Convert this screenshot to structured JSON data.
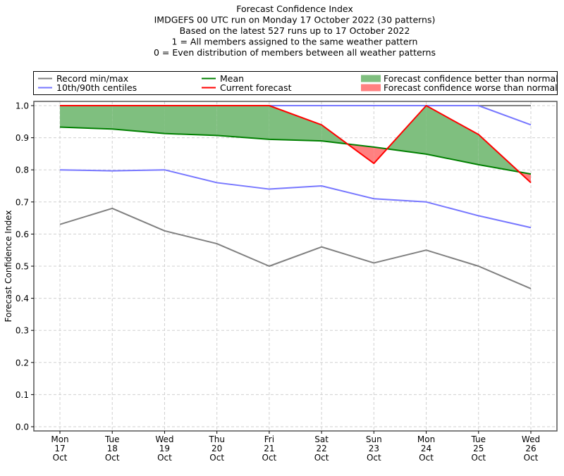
{
  "chart_data": {
    "type": "line",
    "title_lines": [
      "Forecast Confidence Index",
      "IMDGEFS 00 UTC run on Monday 17 October 2022 (30 patterns)",
      "Based on the latest 527 runs up to 17 October 2022",
      "1 = All members assigned to the same weather pattern",
      "0 = Even distribution of members between all weather patterns"
    ],
    "xlabel": "",
    "ylabel": "Forecast Confidence Index",
    "ylim": [
      0.0,
      1.0
    ],
    "yticks": [
      "0.0",
      "0.1",
      "0.2",
      "0.3",
      "0.4",
      "0.5",
      "0.6",
      "0.7",
      "0.8",
      "0.9",
      "1.0"
    ],
    "grid": true,
    "categories": [
      {
        "day": "Mon",
        "date": "17",
        "month": "Oct"
      },
      {
        "day": "Tue",
        "date": "18",
        "month": "Oct"
      },
      {
        "day": "Wed",
        "date": "19",
        "month": "Oct"
      },
      {
        "day": "Thu",
        "date": "20",
        "month": "Oct"
      },
      {
        "day": "Fri",
        "date": "21",
        "month": "Oct"
      },
      {
        "day": "Sat",
        "date": "22",
        "month": "Oct"
      },
      {
        "day": "Sun",
        "date": "23",
        "month": "Oct"
      },
      {
        "day": "Mon",
        "date": "24",
        "month": "Oct"
      },
      {
        "day": "Tue",
        "date": "25",
        "month": "Oct"
      },
      {
        "day": "Wed",
        "date": "26",
        "month": "Oct"
      }
    ],
    "series": [
      {
        "name": "Record min",
        "color": "#808080",
        "values": [
          0.63,
          0.68,
          0.61,
          0.57,
          0.5,
          0.56,
          0.51,
          0.55,
          0.5,
          0.43
        ]
      },
      {
        "name": "Record max",
        "color": "#808080",
        "values": [
          1.0,
          1.0,
          1.0,
          1.0,
          1.0,
          1.0,
          1.0,
          1.0,
          1.0,
          1.0
        ]
      },
      {
        "name": "10th centile",
        "color": "#7777ff",
        "values": [
          0.8,
          0.797,
          0.8,
          0.76,
          0.74,
          0.75,
          0.71,
          0.7,
          0.657,
          0.62
        ]
      },
      {
        "name": "90th centile",
        "color": "#7777ff",
        "values": [
          1.0,
          1.0,
          1.0,
          1.0,
          1.0,
          1.0,
          1.0,
          1.0,
          1.0,
          0.94
        ]
      },
      {
        "name": "Mean",
        "color": "#008000",
        "values": [
          0.933,
          0.927,
          0.913,
          0.907,
          0.895,
          0.89,
          0.871,
          0.849,
          0.816,
          0.787
        ]
      },
      {
        "name": "Current forecast",
        "color": "#ff0000",
        "values": [
          1.0,
          1.0,
          1.0,
          1.0,
          1.0,
          0.94,
          0.82,
          1.0,
          0.91,
          0.76
        ]
      }
    ],
    "fills": {
      "better": {
        "color": "#7fbf7f",
        "label": "Forecast confidence better than normal"
      },
      "worse": {
        "color": "#ff8080",
        "label": "Forecast confidence worse than normal"
      }
    },
    "legend": {
      "placement": "top",
      "entries": [
        {
          "label": "Record min/max",
          "kind": "line",
          "color": "#808080"
        },
        {
          "label": "10th/90th centiles",
          "kind": "line",
          "color": "#7777ff"
        },
        {
          "label": "Mean",
          "kind": "line",
          "color": "#008000"
        },
        {
          "label": "Current forecast",
          "kind": "line",
          "color": "#ff0000"
        },
        {
          "label": "Forecast confidence better than normal",
          "kind": "patch",
          "color": "#7fbf7f"
        },
        {
          "label": "Forecast confidence worse than normal",
          "kind": "patch",
          "color": "#ff8080"
        }
      ]
    }
  }
}
